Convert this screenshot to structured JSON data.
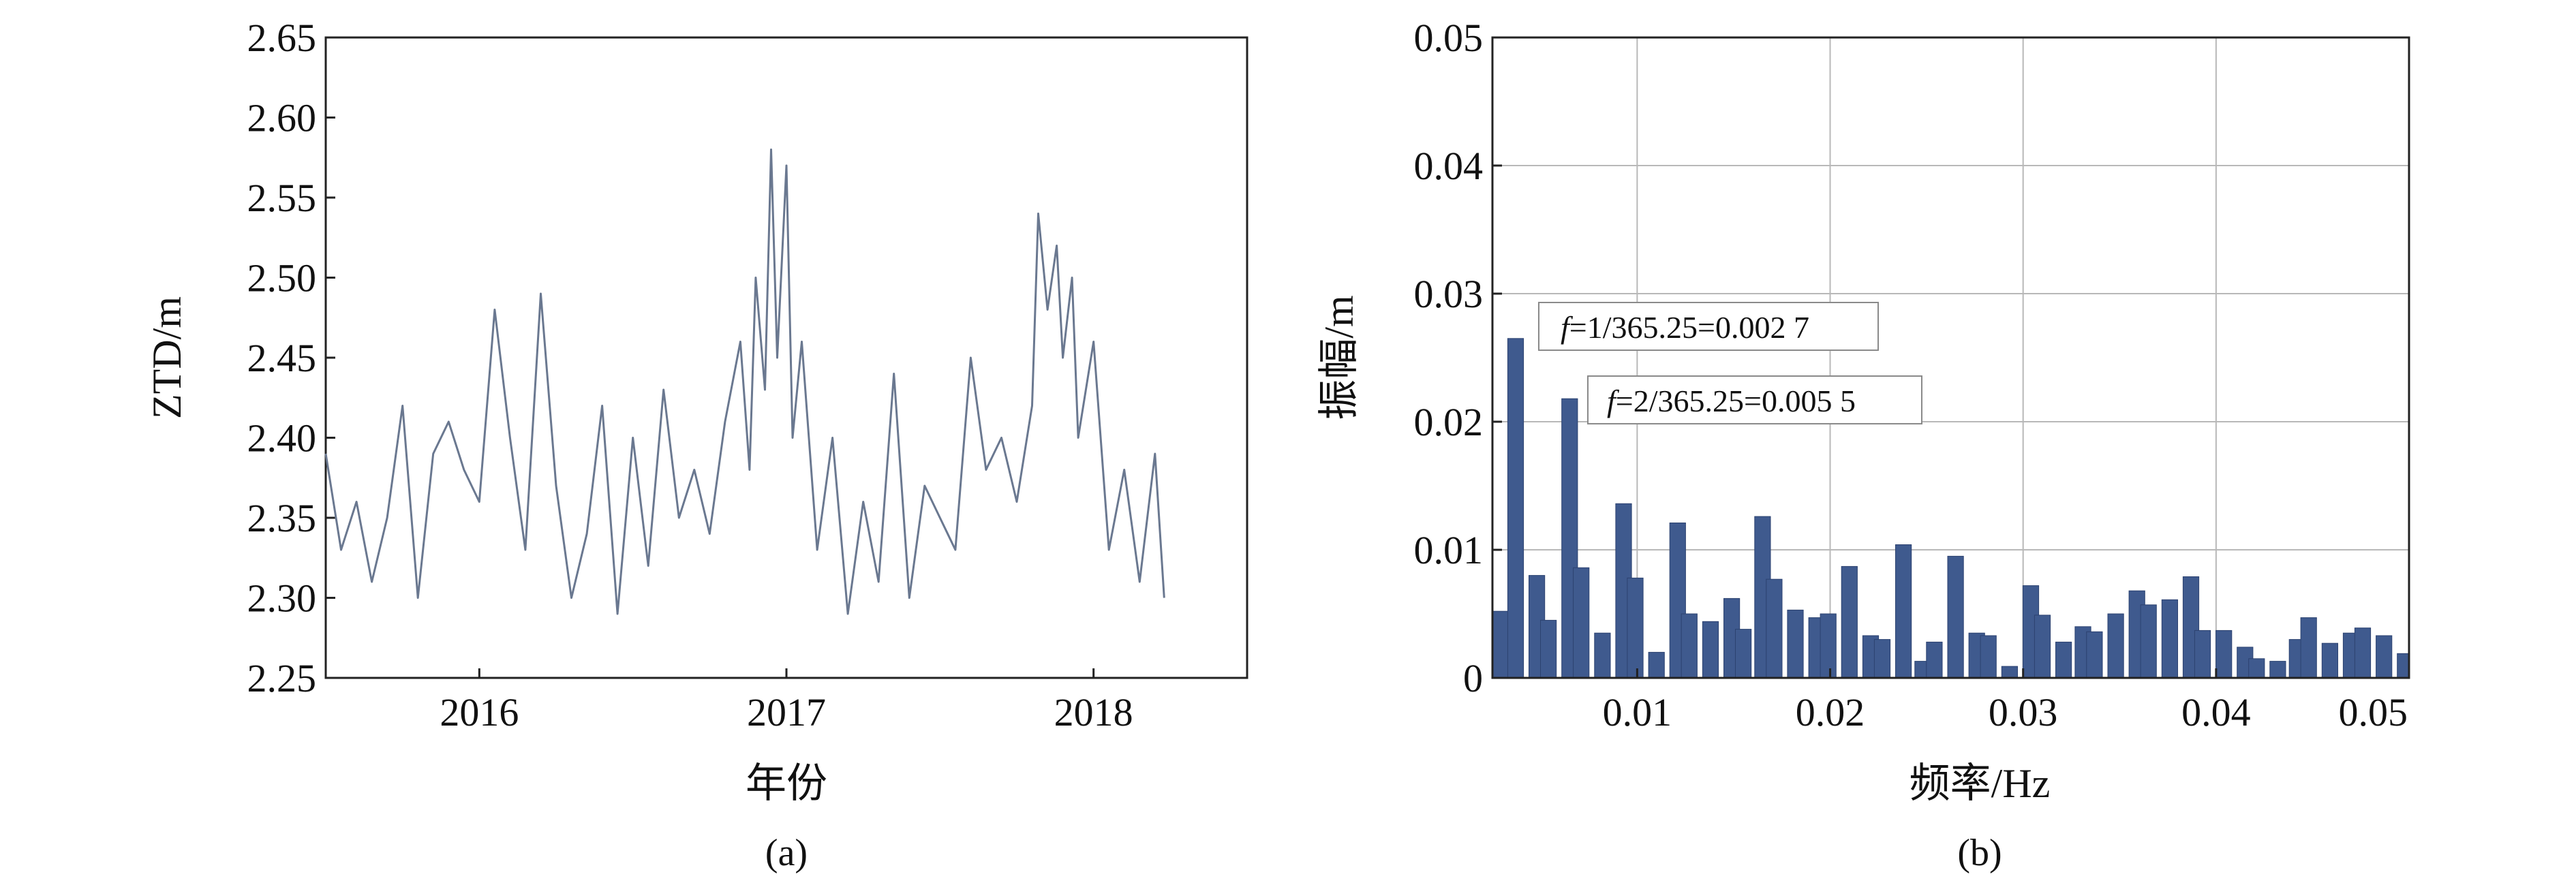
{
  "chart_data": [
    {
      "type": "line",
      "caption": "(a)",
      "xlabel": "年份",
      "ylabel": "ZTD/m",
      "xlim": [
        2015.5,
        2018.5
      ],
      "ylim": [
        2.25,
        2.65
      ],
      "x_ticks": [
        "2016",
        "2017",
        "2018"
      ],
      "y_ticks": [
        "2.25",
        "2.30",
        "2.35",
        "2.40",
        "2.45",
        "2.50",
        "2.55",
        "2.60",
        "2.65"
      ],
      "grid": false,
      "color": "#6a7890",
      "series": [
        {
          "x": [
            2015.5,
            2015.55,
            2015.6,
            2015.65,
            2015.7,
            2015.75,
            2015.8,
            2015.85,
            2015.9,
            2015.95,
            2016.0,
            2016.05,
            2016.1,
            2016.15,
            2016.2,
            2016.25,
            2016.3,
            2016.35,
            2016.4,
            2016.45,
            2016.5,
            2016.55,
            2016.6,
            2016.65,
            2016.7,
            2016.75,
            2016.8,
            2016.85,
            2016.88,
            2016.9,
            2016.93,
            2016.95,
            2016.97,
            2017.0,
            2017.02,
            2017.05,
            2017.1,
            2017.15,
            2017.2,
            2017.25,
            2017.3,
            2017.35,
            2017.4,
            2017.45,
            2017.5,
            2017.55,
            2017.6,
            2017.65,
            2017.7,
            2017.75,
            2017.8,
            2017.82,
            2017.85,
            2017.88,
            2017.9,
            2017.93,
            2017.95,
            2018.0,
            2018.05,
            2018.1,
            2018.15,
            2018.2,
            2018.23
          ],
          "values": [
            2.39,
            2.33,
            2.36,
            2.31,
            2.35,
            2.42,
            2.3,
            2.39,
            2.41,
            2.38,
            2.36,
            2.48,
            2.4,
            2.33,
            2.49,
            2.37,
            2.3,
            2.34,
            2.42,
            2.29,
            2.4,
            2.32,
            2.43,
            2.35,
            2.38,
            2.34,
            2.41,
            2.46,
            2.38,
            2.5,
            2.43,
            2.58,
            2.45,
            2.57,
            2.4,
            2.46,
            2.33,
            2.4,
            2.29,
            2.36,
            2.31,
            2.44,
            2.3,
            2.37,
            2.35,
            2.33,
            2.45,
            2.38,
            2.4,
            2.36,
            2.42,
            2.54,
            2.48,
            2.52,
            2.45,
            2.5,
            2.4,
            2.46,
            2.33,
            2.38,
            2.31,
            2.39,
            2.3
          ]
        }
      ]
    },
    {
      "type": "bar",
      "caption": "(b)",
      "xlabel": "频率/Hz",
      "ylabel": "振幅/m",
      "xlim": [
        0.0025,
        0.05
      ],
      "ylim": [
        0,
        0.05
      ],
      "x_ticks": [
        "0.01",
        "0.02",
        "0.03",
        "0.04",
        "0.05"
      ],
      "y_ticks": [
        "0",
        "0.01",
        "0.02",
        "0.03",
        "0.04",
        "0.05"
      ],
      "grid": true,
      "color": "#3f5a8e",
      "bar_width": 0.00082,
      "x": [
        0.00255,
        0.0029,
        0.0037,
        0.0048,
        0.0054,
        0.0065,
        0.0071,
        0.0082,
        0.0093,
        0.0099,
        0.011,
        0.0121,
        0.0127,
        0.0138,
        0.0149,
        0.0155,
        0.0165,
        0.0171,
        0.0182,
        0.0193,
        0.0199,
        0.021,
        0.0221,
        0.0227,
        0.0238,
        0.0248,
        0.0254,
        0.0265,
        0.0276,
        0.0282,
        0.0293,
        0.0304,
        0.031,
        0.0321,
        0.0331,
        0.0337,
        0.0348,
        0.0359,
        0.0365,
        0.0376,
        0.0387,
        0.0393,
        0.0404,
        0.0415,
        0.0421,
        0.0432,
        0.0442,
        0.0448,
        0.0459,
        0.047,
        0.0476,
        0.0487,
        0.0498
      ],
      "values": [
        0.0018,
        0.0052,
        0.0265,
        0.008,
        0.0045,
        0.0218,
        0.0086,
        0.0035,
        0.0136,
        0.0078,
        0.002,
        0.0121,
        0.005,
        0.0044,
        0.0062,
        0.0038,
        0.0126,
        0.0077,
        0.0053,
        0.0047,
        0.005,
        0.0087,
        0.0033,
        0.003,
        0.0104,
        0.0013,
        0.0028,
        0.0095,
        0.0035,
        0.0033,
        0.0009,
        0.0072,
        0.0049,
        0.0028,
        0.004,
        0.0036,
        0.005,
        0.0068,
        0.0057,
        0.0061,
        0.0079,
        0.0037,
        0.0037,
        0.0024,
        0.0015,
        0.0013,
        0.003,
        0.0047,
        0.0027,
        0.0035,
        0.0039,
        0.0033,
        0.0019
      ],
      "annotations": [
        {
          "prefix": "f",
          "text": "=1/365.25=0.002 7"
        },
        {
          "prefix": "f",
          "text": "=2/365.25=0.005 5"
        }
      ]
    }
  ]
}
